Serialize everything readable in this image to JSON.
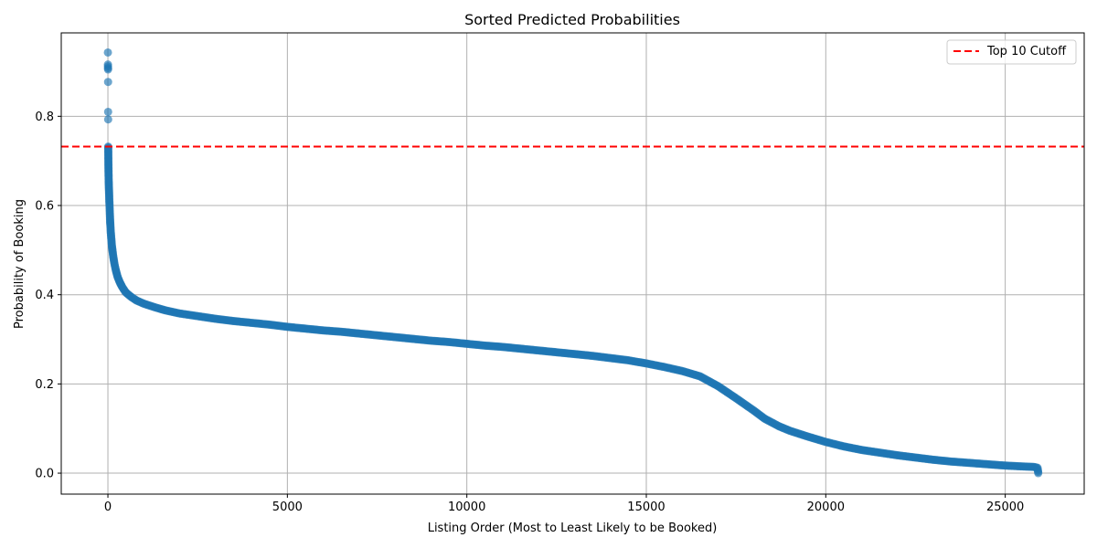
{
  "chart_data": {
    "type": "scatter",
    "title": "Sorted Predicted Probabilities",
    "xlabel": "Listing Order (Most to Least Likely to be Booked)",
    "ylabel": "Probability of Booking",
    "xlim": [
      -1300,
      27200
    ],
    "ylim": [
      -0.047,
      0.987
    ],
    "x_ticks": [
      0,
      5000,
      10000,
      15000,
      20000,
      25000
    ],
    "x_tick_labels": [
      "0",
      "5000",
      "10000",
      "15000",
      "20000",
      "25000"
    ],
    "y_ticks": [
      0.0,
      0.2,
      0.4,
      0.6,
      0.8
    ],
    "y_tick_labels": [
      "0.0",
      "0.2",
      "0.4",
      "0.6",
      "0.8"
    ],
    "grid": true,
    "legend_position": "top-right",
    "series": [
      {
        "color": "#1f77b4",
        "opacity": 0.65,
        "points": [
          [
            0,
            0.943
          ],
          [
            1,
            0.916
          ],
          [
            2,
            0.912
          ],
          [
            3,
            0.908
          ],
          [
            4,
            0.905
          ],
          [
            5,
            0.877
          ],
          [
            6,
            0.81
          ],
          [
            7,
            0.793
          ],
          [
            8,
            0.732
          ],
          [
            9,
            0.728
          ],
          [
            12,
            0.708
          ],
          [
            15,
            0.688
          ],
          [
            18,
            0.672
          ],
          [
            22,
            0.655
          ],
          [
            26,
            0.645
          ],
          [
            30,
            0.635
          ],
          [
            35,
            0.622
          ],
          [
            40,
            0.61
          ],
          [
            48,
            0.595
          ],
          [
            55,
            0.58
          ],
          [
            62,
            0.565
          ],
          [
            70,
            0.555
          ],
          [
            80,
            0.54
          ],
          [
            95,
            0.525
          ],
          [
            110,
            0.51
          ],
          [
            130,
            0.497
          ],
          [
            150,
            0.485
          ],
          [
            180,
            0.47
          ],
          [
            220,
            0.455
          ],
          [
            270,
            0.44
          ],
          [
            330,
            0.428
          ],
          [
            400,
            0.417
          ],
          [
            500,
            0.405
          ],
          [
            650,
            0.395
          ],
          [
            800,
            0.387
          ],
          [
            1000,
            0.38
          ],
          [
            1300,
            0.372
          ],
          [
            1600,
            0.365
          ],
          [
            2000,
            0.358
          ],
          [
            2500,
            0.352
          ],
          [
            3000,
            0.346
          ],
          [
            3500,
            0.341
          ],
          [
            4000,
            0.337
          ],
          [
            4500,
            0.333
          ],
          [
            5000,
            0.328
          ],
          [
            5500,
            0.324
          ],
          [
            6000,
            0.32
          ],
          [
            6500,
            0.317
          ],
          [
            7000,
            0.313
          ],
          [
            7500,
            0.309
          ],
          [
            8000,
            0.305
          ],
          [
            8500,
            0.301
          ],
          [
            9000,
            0.297
          ],
          [
            9500,
            0.294
          ],
          [
            10000,
            0.29
          ],
          [
            10500,
            0.286
          ],
          [
            11000,
            0.283
          ],
          [
            11500,
            0.279
          ],
          [
            12000,
            0.275
          ],
          [
            12500,
            0.271
          ],
          [
            13000,
            0.267
          ],
          [
            13500,
            0.263
          ],
          [
            14000,
            0.258
          ],
          [
            14500,
            0.253
          ],
          [
            15000,
            0.246
          ],
          [
            15500,
            0.238
          ],
          [
            16000,
            0.229
          ],
          [
            16500,
            0.217
          ],
          [
            17000,
            0.195
          ],
          [
            17500,
            0.168
          ],
          [
            18000,
            0.14
          ],
          [
            18300,
            0.122
          ],
          [
            18700,
            0.105
          ],
          [
            19000,
            0.095
          ],
          [
            19500,
            0.082
          ],
          [
            20000,
            0.07
          ],
          [
            20500,
            0.06
          ],
          [
            21000,
            0.052
          ],
          [
            21500,
            0.046
          ],
          [
            22000,
            0.04
          ],
          [
            22500,
            0.035
          ],
          [
            23000,
            0.03
          ],
          [
            23500,
            0.026
          ],
          [
            24000,
            0.023
          ],
          [
            24500,
            0.02
          ],
          [
            25000,
            0.017
          ],
          [
            25500,
            0.015
          ],
          [
            25800,
            0.014
          ],
          [
            25900,
            0.012
          ],
          [
            25920,
            0.0
          ]
        ]
      }
    ],
    "cutoff_line": {
      "label": "Top 10 Cutoff",
      "y": 0.732,
      "color": "#ff0000",
      "style": "dashed"
    }
  }
}
